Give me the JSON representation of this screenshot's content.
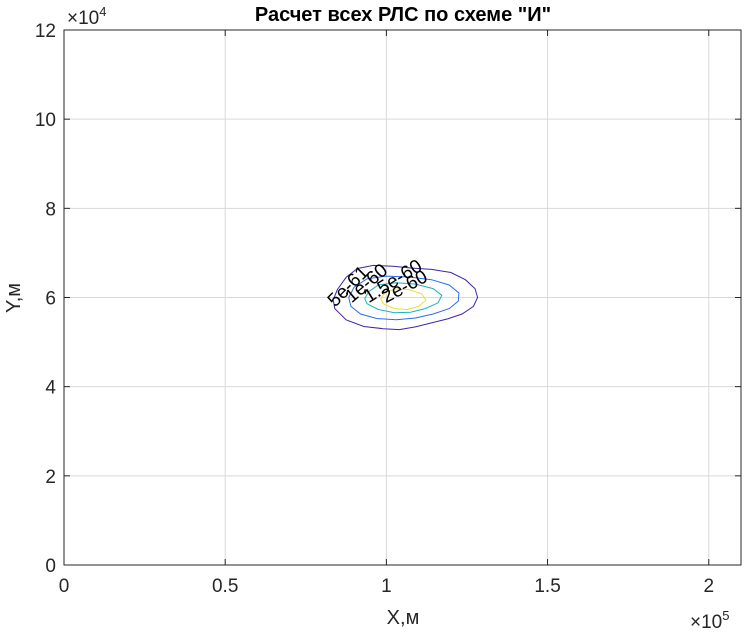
{
  "chart_data": {
    "type": "contour",
    "title": "Расчет всех РЛС по схеме \"И\"",
    "xlabel": "X,м",
    "ylabel": "Y,м",
    "x_exponent_label": "×10",
    "x_exponent": "5",
    "y_exponent_label": "×10",
    "y_exponent": "4",
    "xlim": [
      0,
      210000
    ],
    "ylim": [
      0,
      120000
    ],
    "x_ticks": [
      0,
      50000,
      100000,
      150000,
      200000
    ],
    "x_tick_labels": [
      "0",
      "0.5",
      "1",
      "1.5",
      "2"
    ],
    "y_ticks": [
      0,
      20000,
      40000,
      60000,
      80000,
      100000,
      120000
    ],
    "y_tick_labels": [
      "0",
      "2",
      "4",
      "6",
      "8",
      "10",
      "12"
    ],
    "grid": true,
    "levels": [
      {
        "label": "5e-61",
        "color": "#3e26a8",
        "points": [
          [
            84000,
            57500
          ],
          [
            87500,
            55000
          ],
          [
            93000,
            53500
          ],
          [
            99000,
            53000
          ],
          [
            104000,
            52800
          ],
          [
            109000,
            53400
          ],
          [
            114000,
            54300
          ],
          [
            119000,
            55200
          ],
          [
            123500,
            56300
          ],
          [
            127000,
            58000
          ],
          [
            128300,
            60000
          ],
          [
            127500,
            62000
          ],
          [
            124500,
            64000
          ],
          [
            120000,
            65600
          ],
          [
            114000,
            66300
          ],
          [
            108000,
            66600
          ],
          [
            102000,
            67000
          ],
          [
            96000,
            67200
          ],
          [
            91000,
            66500
          ],
          [
            87500,
            64500
          ],
          [
            84800,
            61800
          ],
          [
            83500,
            59500
          ]
        ]
      },
      {
        "label": "1e-60",
        "color": "#2a6af2",
        "points": [
          [
            89000,
            58000
          ],
          [
            92000,
            56300
          ],
          [
            97000,
            55300
          ],
          [
            103000,
            55000
          ],
          [
            109000,
            55400
          ],
          [
            114500,
            56300
          ],
          [
            119500,
            57500
          ],
          [
            122300,
            59200
          ],
          [
            122500,
            61000
          ],
          [
            119500,
            62800
          ],
          [
            114000,
            64000
          ],
          [
            107000,
            64600
          ],
          [
            100000,
            64800
          ],
          [
            94000,
            64200
          ],
          [
            90000,
            62300
          ],
          [
            88300,
            60000
          ]
        ]
      },
      {
        "label": "1.5e-60",
        "color": "#1bb4b4",
        "points": [
          [
            94000,
            58600
          ],
          [
            97500,
            57300
          ],
          [
            102500,
            56600
          ],
          [
            107500,
            56700
          ],
          [
            112000,
            57500
          ],
          [
            116000,
            58800
          ],
          [
            117200,
            60500
          ],
          [
            114500,
            62000
          ],
          [
            109000,
            63000
          ],
          [
            103000,
            63300
          ],
          [
            97500,
            62800
          ],
          [
            94500,
            61300
          ],
          [
            93300,
            59800
          ]
        ]
      },
      {
        "label": "2e-60",
        "color": "#ebe02e",
        "points": [
          [
            99000,
            58600
          ],
          [
            102500,
            57500
          ],
          [
            106500,
            57300
          ],
          [
            110000,
            58000
          ],
          [
            112300,
            59400
          ],
          [
            111000,
            60800
          ],
          [
            107000,
            61800
          ],
          [
            102500,
            61900
          ],
          [
            99500,
            61000
          ],
          [
            98300,
            59800
          ]
        ]
      }
    ]
  }
}
